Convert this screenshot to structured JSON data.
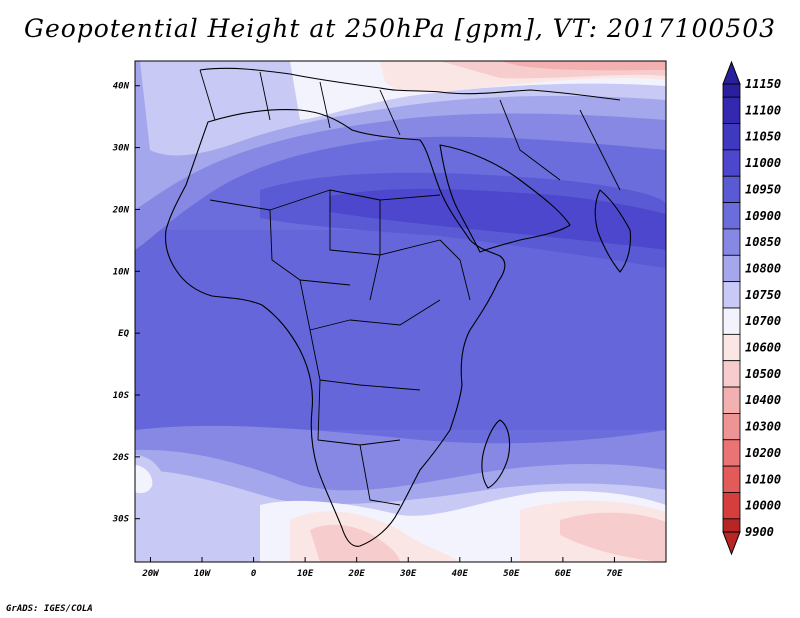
{
  "title": "Geopotential Height at 250hPa [gpm], VT: 2017100503",
  "credit": "GrADS: IGES/COLA",
  "map": {
    "lon_range": [
      -23,
      80
    ],
    "lat_range": [
      -37,
      44
    ],
    "lon_ticks": [
      {
        "value": -20,
        "label": "20W"
      },
      {
        "value": -10,
        "label": "10W"
      },
      {
        "value": 0,
        "label": "0"
      },
      {
        "value": 10,
        "label": "10E"
      },
      {
        "value": 20,
        "label": "20E"
      },
      {
        "value": 30,
        "label": "30E"
      },
      {
        "value": 40,
        "label": "40E"
      },
      {
        "value": 50,
        "label": "50E"
      },
      {
        "value": 60,
        "label": "60E"
      },
      {
        "value": 70,
        "label": "70E"
      }
    ],
    "lat_ticks": [
      {
        "value": 40,
        "label": "40N"
      },
      {
        "value": 30,
        "label": "30N"
      },
      {
        "value": 20,
        "label": "20N"
      },
      {
        "value": 10,
        "label": "10N"
      },
      {
        "value": 0,
        "label": "EQ"
      },
      {
        "value": -10,
        "label": "10S"
      },
      {
        "value": -20,
        "label": "20S"
      },
      {
        "value": -30,
        "label": "30S"
      }
    ]
  },
  "legend": {
    "levels": [
      "11150",
      "11100",
      "11050",
      "11000",
      "10950",
      "10900",
      "10850",
      "10800",
      "10750",
      "10700",
      "10600",
      "10500",
      "10400",
      "10300",
      "10200",
      "10100",
      "10000",
      "9900"
    ],
    "colors": [
      "#2a1f9c",
      "#3528b0",
      "#3f38c0",
      "#4c47cc",
      "#5a5ad5",
      "#6b6ddd",
      "#8688e4",
      "#a4a7ec",
      "#c8caf5",
      "#f3f3fd",
      "#fbe6e6",
      "#f7cccc",
      "#f2b0b0",
      "#ee9494",
      "#ea7474",
      "#e25a5a",
      "#d63d3d",
      "#b82525"
    ]
  }
}
